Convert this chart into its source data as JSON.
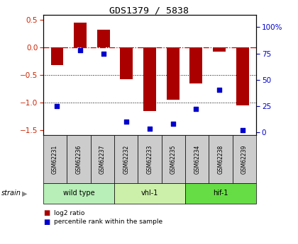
{
  "title": "GDS1379 / 5838",
  "samples": [
    "GSM62231",
    "GSM62236",
    "GSM62237",
    "GSM62232",
    "GSM62233",
    "GSM62235",
    "GSM62234",
    "GSM62238",
    "GSM62239"
  ],
  "log2_ratio": [
    -0.32,
    0.46,
    0.33,
    -0.57,
    -1.15,
    -0.95,
    -0.65,
    -0.07,
    -1.05
  ],
  "percentile_rank": [
    25,
    78,
    75,
    10,
    3,
    8,
    22,
    40,
    2
  ],
  "groups": [
    {
      "label": "wild type",
      "indices": [
        0,
        1,
        2
      ],
      "color": "#b8eeb8"
    },
    {
      "label": "vhl-1",
      "indices": [
        3,
        4,
        5
      ],
      "color": "#ccf0aa"
    },
    {
      "label": "hif-1",
      "indices": [
        6,
        7,
        8
      ],
      "color": "#66dd44"
    }
  ],
  "ylim_left": [
    -1.6,
    0.6
  ],
  "ylim_right": [
    -3.2,
    112
  ],
  "yticks_left": [
    -1.5,
    -1.0,
    -0.5,
    0.0,
    0.5
  ],
  "yticks_right": [
    0,
    25,
    50,
    75,
    100
  ],
  "bar_color": "#aa0000",
  "dot_color": "#0000cc",
  "ref_line_color": "#cc0000",
  "bg_color": "#ffffff",
  "legend_bar": "log2 ratio",
  "legend_dot": "percentile rank within the sample",
  "bar_width": 0.55
}
